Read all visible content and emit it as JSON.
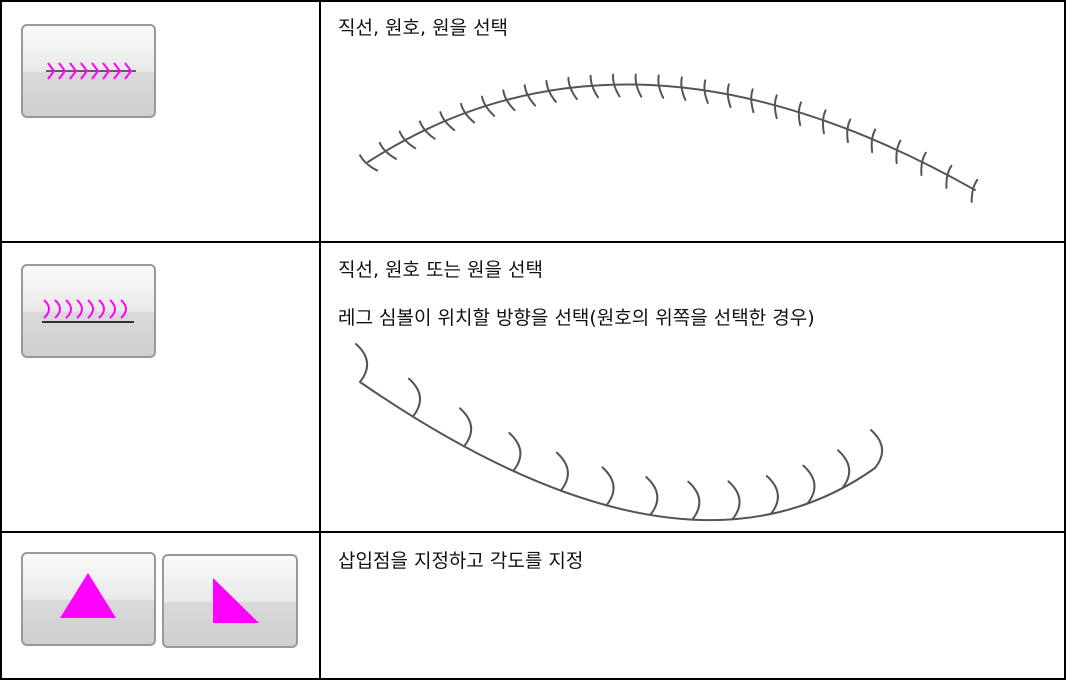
{
  "table": {
    "rows": [
      {
        "text": [
          "직선, 원호, 원을 선택"
        ]
      },
      {
        "text": [
          "직선, 원호 또는 원을 선택",
          "레그 심볼이 위치할 방향을 선택(원호의 위쪽을 선택한 경우)"
        ]
      },
      {
        "text": [
          "삽입점을 지정하고 각도를 지정"
        ]
      }
    ]
  }
}
